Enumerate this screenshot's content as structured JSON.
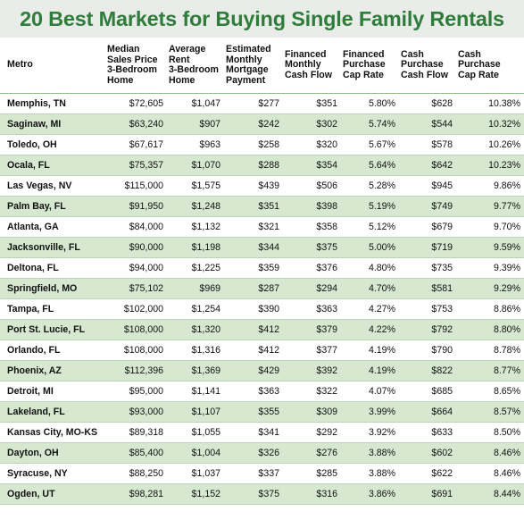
{
  "title": "20 Best Markets for Buying Single Family Rentals",
  "columns": [
    "Metro",
    "Median\nSales Price\n3-Bedroom\nHome",
    "Average\nRent\n3-Bedroom\nHome",
    "Estimated\nMonthly\nMortgage\nPayment",
    "Financed\nMonthly\nCash Flow",
    "Financed\nPurchase\nCap Rate",
    "Cash\nPurchase\nCash Flow",
    "Cash\nPurchase\nCap Rate"
  ],
  "rows": [
    {
      "metro": "Memphis, TN",
      "price": "$72,605",
      "rent": "$1,047",
      "mortgage": "$277",
      "fin_cf": "$351",
      "fin_cap": "5.80%",
      "cash_cf": "$628",
      "cash_cap": "10.38%"
    },
    {
      "metro": "Saginaw, MI",
      "price": "$63,240",
      "rent": "$907",
      "mortgage": "$242",
      "fin_cf": "$302",
      "fin_cap": "5.74%",
      "cash_cf": "$544",
      "cash_cap": "10.32%"
    },
    {
      "metro": "Toledo, OH",
      "price": "$67,617",
      "rent": "$963",
      "mortgage": "$258",
      "fin_cf": "$320",
      "fin_cap": "5.67%",
      "cash_cf": "$578",
      "cash_cap": "10.26%"
    },
    {
      "metro": "Ocala, FL",
      "price": "$75,357",
      "rent": "$1,070",
      "mortgage": "$288",
      "fin_cf": "$354",
      "fin_cap": "5.64%",
      "cash_cf": "$642",
      "cash_cap": "10.23%"
    },
    {
      "metro": "Las Vegas, NV",
      "price": "$115,000",
      "rent": "$1,575",
      "mortgage": "$439",
      "fin_cf": "$506",
      "fin_cap": "5.28%",
      "cash_cf": "$945",
      "cash_cap": "9.86%"
    },
    {
      "metro": "Palm Bay, FL",
      "price": "$91,950",
      "rent": "$1,248",
      "mortgage": "$351",
      "fin_cf": "$398",
      "fin_cap": "5.19%",
      "cash_cf": "$749",
      "cash_cap": "9.77%"
    },
    {
      "metro": "Atlanta, GA",
      "price": "$84,000",
      "rent": "$1,132",
      "mortgage": "$321",
      "fin_cf": "$358",
      "fin_cap": "5.12%",
      "cash_cf": "$679",
      "cash_cap": "9.70%"
    },
    {
      "metro": "Jacksonville, FL",
      "price": "$90,000",
      "rent": "$1,198",
      "mortgage": "$344",
      "fin_cf": "$375",
      "fin_cap": "5.00%",
      "cash_cf": "$719",
      "cash_cap": "9.59%"
    },
    {
      "metro": "Deltona, FL",
      "price": "$94,000",
      "rent": "$1,225",
      "mortgage": "$359",
      "fin_cf": "$376",
      "fin_cap": "4.80%",
      "cash_cf": "$735",
      "cash_cap": "9.39%"
    },
    {
      "metro": "Springfield, MO",
      "price": "$75,102",
      "rent": "$969",
      "mortgage": "$287",
      "fin_cf": "$294",
      "fin_cap": "4.70%",
      "cash_cf": "$581",
      "cash_cap": "9.29%"
    },
    {
      "metro": "Tampa, FL",
      "price": "$102,000",
      "rent": "$1,254",
      "mortgage": "$390",
      "fin_cf": "$363",
      "fin_cap": "4.27%",
      "cash_cf": "$753",
      "cash_cap": "8.86%"
    },
    {
      "metro": "Port St. Lucie, FL",
      "price": "$108,000",
      "rent": "$1,320",
      "mortgage": "$412",
      "fin_cf": "$379",
      "fin_cap": "4.22%",
      "cash_cf": "$792",
      "cash_cap": "8.80%"
    },
    {
      "metro": "Orlando, FL",
      "price": "$108,000",
      "rent": "$1,316",
      "mortgage": "$412",
      "fin_cf": "$377",
      "fin_cap": "4.19%",
      "cash_cf": "$790",
      "cash_cap": "8.78%"
    },
    {
      "metro": "Phoenix, AZ",
      "price": "$112,396",
      "rent": "$1,369",
      "mortgage": "$429",
      "fin_cf": "$392",
      "fin_cap": "4.19%",
      "cash_cf": "$822",
      "cash_cap": "8.77%"
    },
    {
      "metro": "Detroit, MI",
      "price": "$95,000",
      "rent": "$1,141",
      "mortgage": "$363",
      "fin_cf": "$322",
      "fin_cap": "4.07%",
      "cash_cf": "$685",
      "cash_cap": "8.65%"
    },
    {
      "metro": "Lakeland, FL",
      "price": "$93,000",
      "rent": "$1,107",
      "mortgage": "$355",
      "fin_cf": "$309",
      "fin_cap": "3.99%",
      "cash_cf": "$664",
      "cash_cap": "8.57%"
    },
    {
      "metro": "Kansas City, MO-KS",
      "price": "$89,318",
      "rent": "$1,055",
      "mortgage": "$341",
      "fin_cf": "$292",
      "fin_cap": "3.92%",
      "cash_cf": "$633",
      "cash_cap": "8.50%"
    },
    {
      "metro": "Dayton, OH",
      "price": "$85,400",
      "rent": "$1,004",
      "mortgage": "$326",
      "fin_cf": "$276",
      "fin_cap": "3.88%",
      "cash_cf": "$602",
      "cash_cap": "8.46%"
    },
    {
      "metro": "Syracuse, NY",
      "price": "$88,250",
      "rent": "$1,037",
      "mortgage": "$337",
      "fin_cf": "$285",
      "fin_cap": "3.88%",
      "cash_cf": "$622",
      "cash_cap": "8.46%"
    },
    {
      "metro": "Ogden, UT",
      "price": "$98,281",
      "rent": "$1,152",
      "mortgage": "$375",
      "fin_cf": "$316",
      "fin_cap": "3.86%",
      "cash_cf": "$691",
      "cash_cap": "8.44%"
    }
  ],
  "colors": {
    "title_text": "#2f7d3a",
    "title_background": "#e9ece8",
    "alt_row_fill": "#d6e8cf",
    "row_divider": "#b9d3b4"
  }
}
